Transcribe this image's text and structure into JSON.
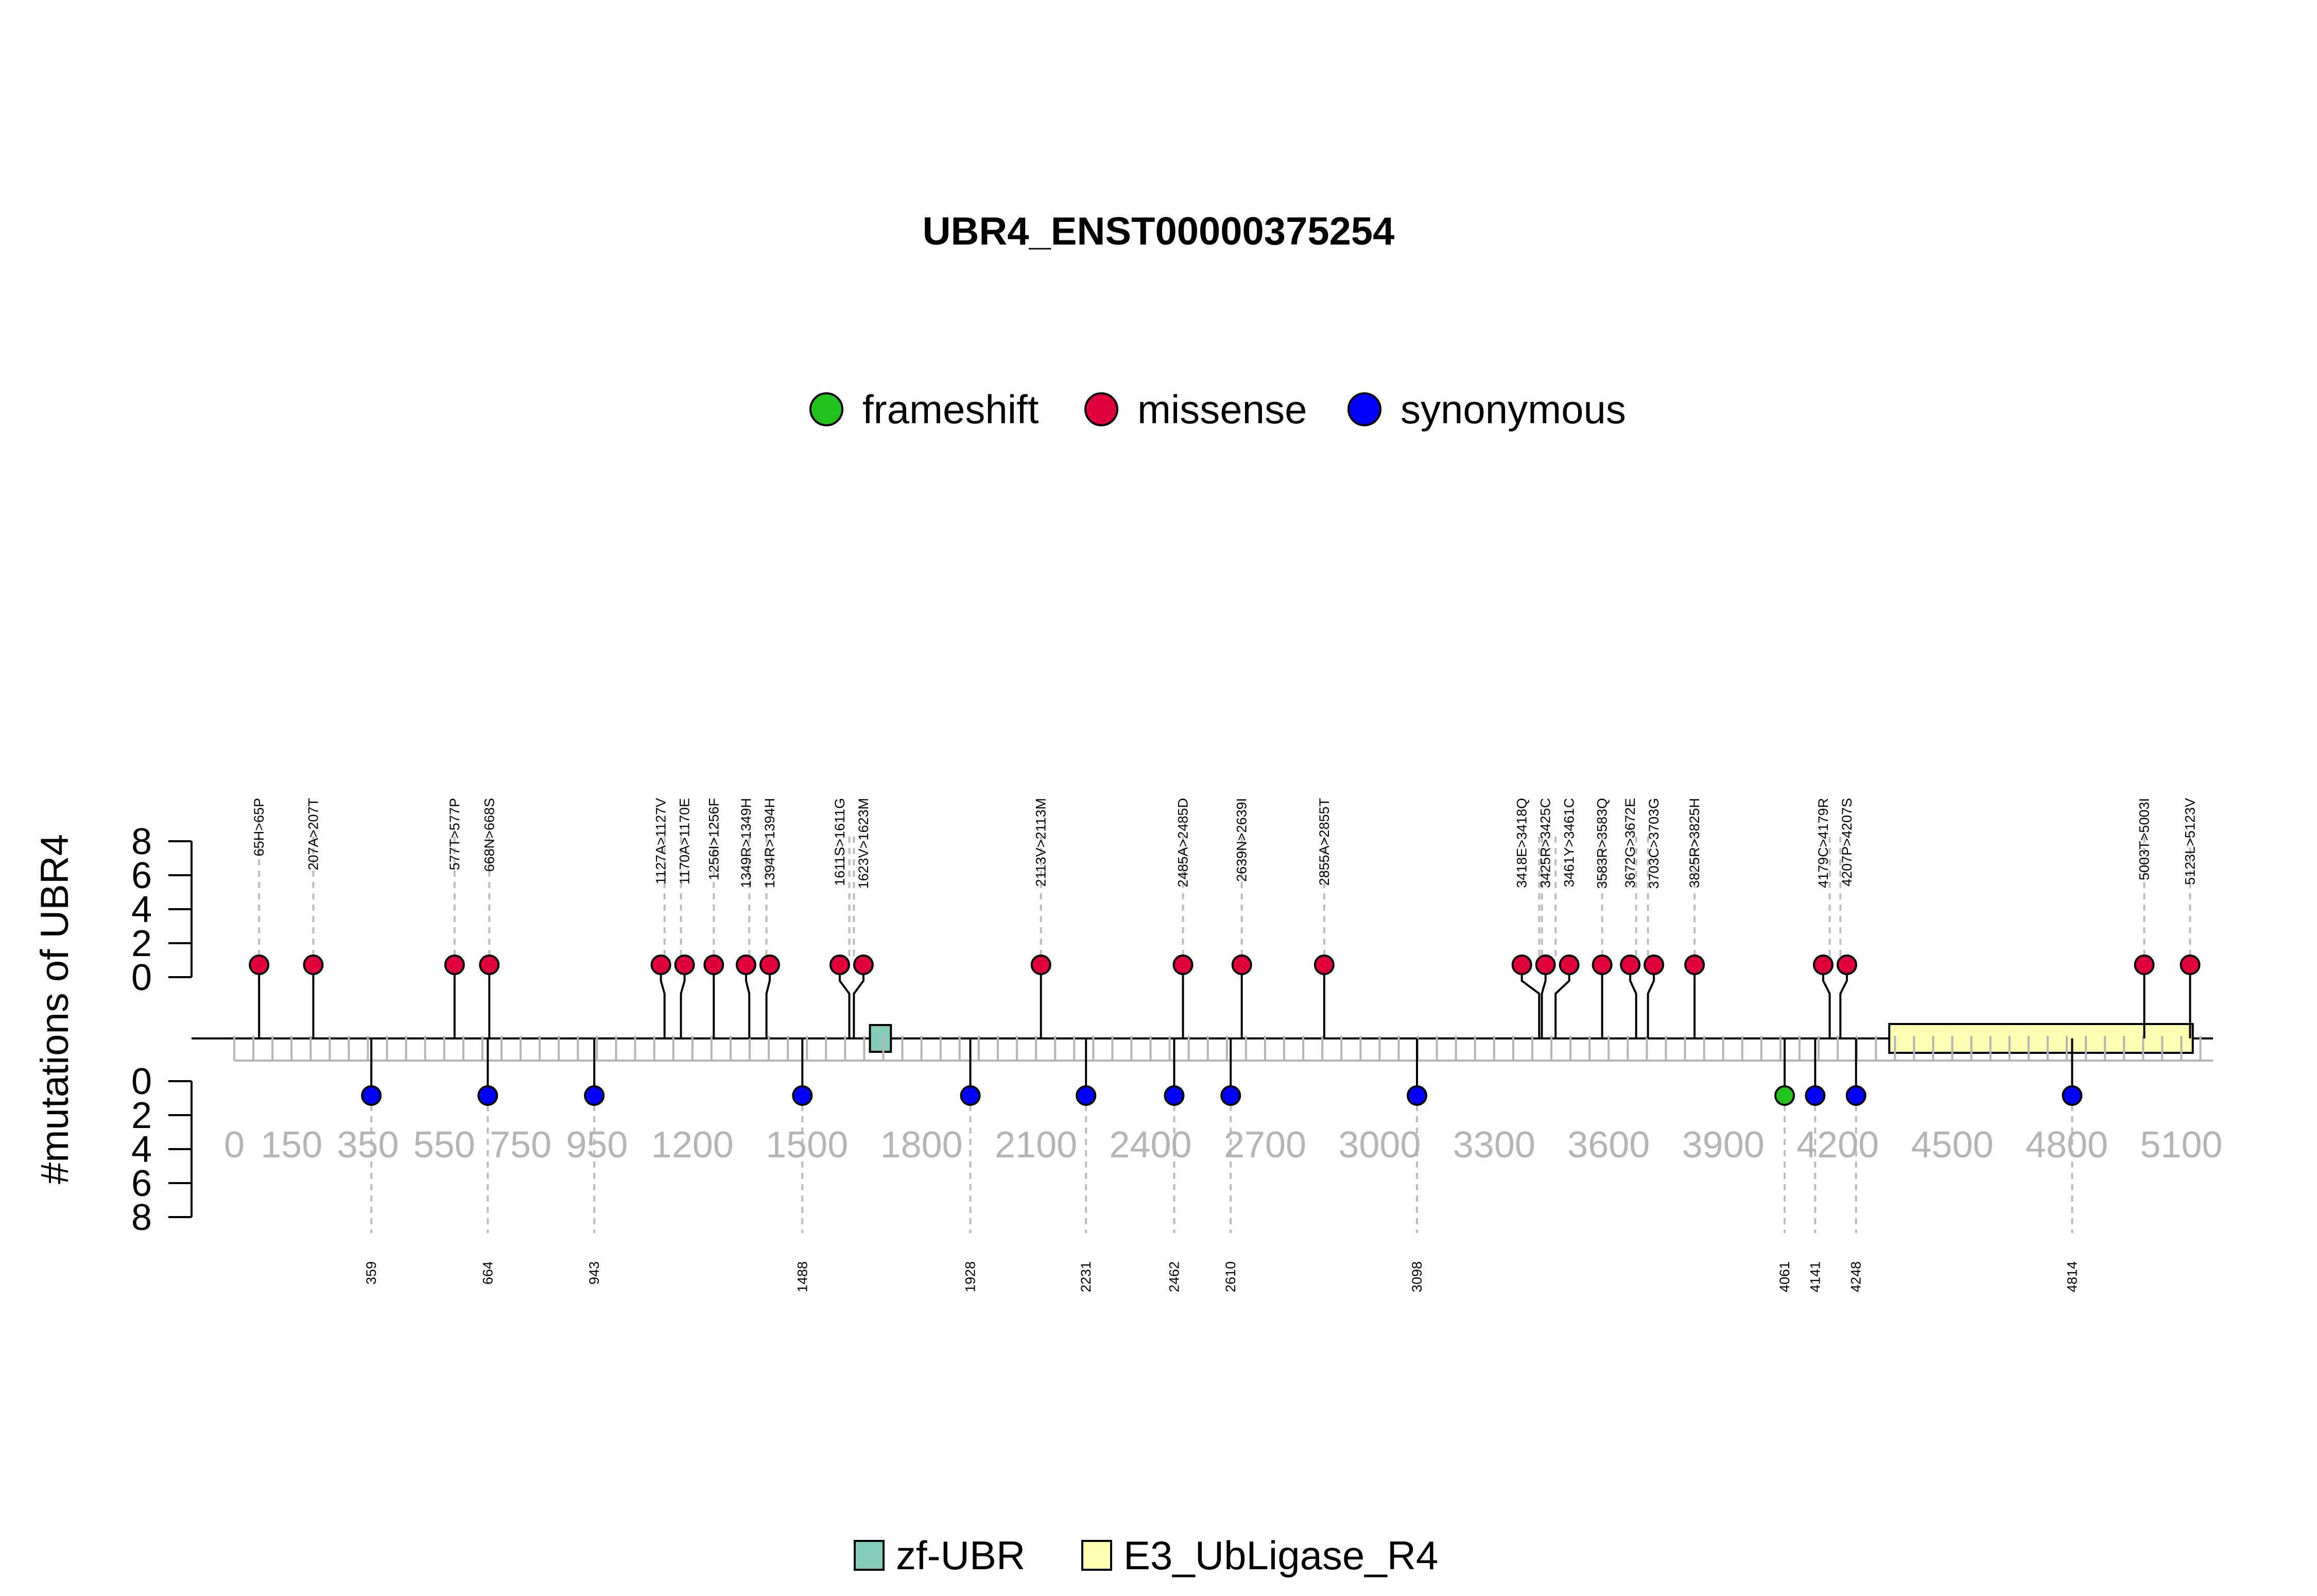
{
  "chart_data": {
    "type": "lollipop",
    "title": "UBR4_ENST00000375254",
    "ylabel": "#mutations of UBR4",
    "ylim_top": [
      0,
      8
    ],
    "ylim_bottom": [
      0,
      8
    ],
    "yticks": [
      "0",
      "2",
      "4",
      "6",
      "8"
    ],
    "xlim": [
      0,
      5183
    ],
    "xticks": [
      "0",
      "150",
      "350",
      "550",
      "750",
      "950",
      "1200",
      "1500",
      "1800",
      "2100",
      "2400",
      "2700",
      "3000",
      "3300",
      "3600",
      "3900",
      "4200",
      "4500",
      "4800",
      "5100"
    ],
    "legend": [
      {
        "name": "frameshift",
        "color": "#22c21d"
      },
      {
        "name": "missense",
        "color": "#e0003c"
      },
      {
        "name": "synonymous",
        "color": "#0000ff"
      }
    ],
    "domain_legend": [
      {
        "name": "zf-UBR",
        "color": "#85cdb9"
      },
      {
        "name": "E3_UbLigase_R4",
        "color": "#ffffb3"
      }
    ],
    "domains": [
      {
        "name": "zf-UBR",
        "start": 1665,
        "end": 1720
      },
      {
        "name": "E3_UbLigase_R4",
        "start": 4335,
        "end": 5130
      }
    ],
    "top_mutations": [
      {
        "label": "65H>65P",
        "pos": 65,
        "count": 1,
        "type": "missense"
      },
      {
        "label": "207A>207T",
        "pos": 207,
        "count": 1,
        "type": "missense"
      },
      {
        "label": "577T>577P",
        "pos": 577,
        "count": 1,
        "type": "missense"
      },
      {
        "label": "668N>668S",
        "pos": 668,
        "count": 1,
        "type": "missense"
      },
      {
        "label": "1127A>1127V",
        "pos": 1127,
        "count": 1,
        "type": "missense"
      },
      {
        "label": "1170A>1170E",
        "pos": 1170,
        "count": 1,
        "type": "missense"
      },
      {
        "label": "1256I>1256F",
        "pos": 1256,
        "count": 1,
        "type": "missense"
      },
      {
        "label": "1349R>1349H",
        "pos": 1349,
        "count": 1,
        "type": "missense"
      },
      {
        "label": "1394R>1394H",
        "pos": 1394,
        "count": 1,
        "type": "missense"
      },
      {
        "label": "1611S>1611G",
        "pos": 1611,
        "count": 1,
        "type": "missense"
      },
      {
        "label": "1623V>1623M",
        "pos": 1623,
        "count": 1,
        "type": "missense"
      },
      {
        "label": "2113V>2113M",
        "pos": 2113,
        "count": 1,
        "type": "missense"
      },
      {
        "label": "2485A>2485D",
        "pos": 2485,
        "count": 1,
        "type": "missense"
      },
      {
        "label": "2639N>2639I",
        "pos": 2639,
        "count": 1,
        "type": "missense"
      },
      {
        "label": "2855A>2855T",
        "pos": 2855,
        "count": 1,
        "type": "missense"
      },
      {
        "label": "3418E>3418Q",
        "pos": 3418,
        "count": 1,
        "type": "missense"
      },
      {
        "label": "3425R>3425C",
        "pos": 3425,
        "count": 1,
        "type": "missense"
      },
      {
        "label": "3461Y>3461C",
        "pos": 3461,
        "count": 1,
        "type": "missense"
      },
      {
        "label": "3583R>3583Q",
        "pos": 3583,
        "count": 1,
        "type": "missense"
      },
      {
        "label": "3672G>3672E",
        "pos": 3672,
        "count": 1,
        "type": "missense"
      },
      {
        "label": "3703C>3703G",
        "pos": 3703,
        "count": 1,
        "type": "missense"
      },
      {
        "label": "3825R>3825H",
        "pos": 3825,
        "count": 1,
        "type": "missense"
      },
      {
        "label": "4179C>4179R",
        "pos": 4179,
        "count": 1,
        "type": "missense"
      },
      {
        "label": "4207P>4207S",
        "pos": 4207,
        "count": 1,
        "type": "missense"
      },
      {
        "label": "5003T>5003I",
        "pos": 5003,
        "count": 1,
        "type": "missense"
      },
      {
        "label": "5123L>5123V",
        "pos": 5123,
        "count": 1,
        "type": "missense"
      }
    ],
    "bottom_mutations": [
      {
        "label": "359",
        "pos": 359,
        "count": 1,
        "type": "synonymous"
      },
      {
        "label": "664",
        "pos": 664,
        "count": 1,
        "type": "synonymous"
      },
      {
        "label": "943",
        "pos": 943,
        "count": 1,
        "type": "synonymous"
      },
      {
        "label": "1488",
        "pos": 1488,
        "count": 1,
        "type": "synonymous"
      },
      {
        "label": "1928",
        "pos": 1928,
        "count": 1,
        "type": "synonymous"
      },
      {
        "label": "2231",
        "pos": 2231,
        "count": 1,
        "type": "synonymous"
      },
      {
        "label": "2462",
        "pos": 2462,
        "count": 1,
        "type": "synonymous"
      },
      {
        "label": "2610",
        "pos": 2610,
        "count": 1,
        "type": "synonymous"
      },
      {
        "label": "3098",
        "pos": 3098,
        "count": 1,
        "type": "synonymous"
      },
      {
        "label": "4061",
        "pos": 4061,
        "count": 1,
        "type": "frameshift"
      },
      {
        "label": "4141",
        "pos": 4141,
        "count": 1,
        "type": "synonymous"
      },
      {
        "label": "4248",
        "pos": 4248,
        "count": 1,
        "type": "synonymous"
      },
      {
        "label": "4814",
        "pos": 4814,
        "count": 1,
        "type": "synonymous"
      }
    ]
  }
}
